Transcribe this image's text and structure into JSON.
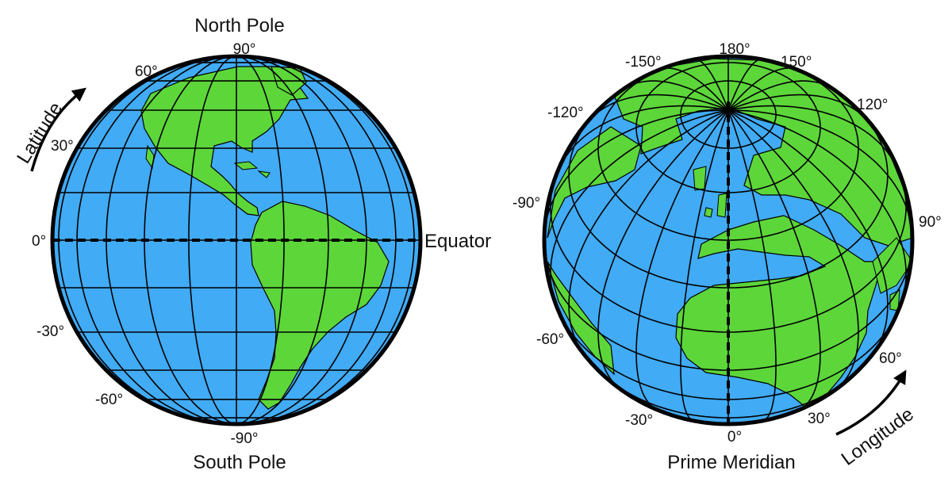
{
  "colors": {
    "ocean": "#41ABF5",
    "land": "#5DD63A",
    "grid": "#000000",
    "outline": "#000000"
  },
  "latitude_globe": {
    "north_pole": "North Pole",
    "south_pole": "South Pole",
    "equator": "Equator",
    "arrow_label": "Latitude",
    "lat_labels": {
      "north": "90°",
      "n60": "60°",
      "n30": "30°",
      "zero": "0°",
      "s30": "-30°",
      "s60": "-60°",
      "south": "-90°"
    }
  },
  "longitude_globe": {
    "prime_meridian": "Prime Meridian",
    "arrow_label": "Longitude",
    "lon_labels": {
      "top": "180°",
      "m150": "-150°",
      "p150": "150°",
      "m120": "-120°",
      "p120": "120°",
      "m90": "-90°",
      "p90": "90°",
      "m60": "-60°",
      "p60": "60°",
      "m30": "-30°",
      "p30": "30°",
      "zero": "0°"
    }
  }
}
